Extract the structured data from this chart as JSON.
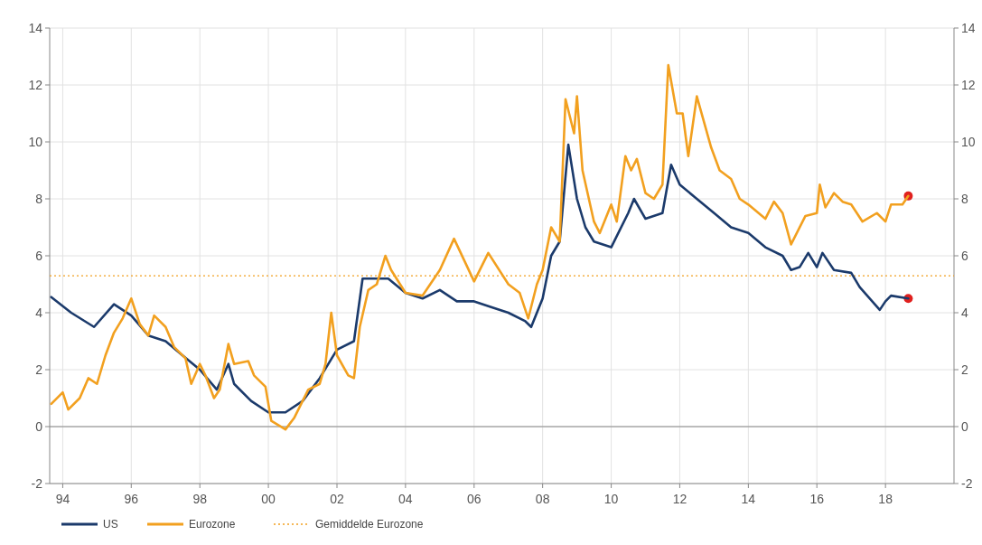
{
  "chart_data": {
    "type": "line",
    "xlim": [
      "1993-08-15",
      "2020-01-01"
    ],
    "ylim": [
      -2,
      14
    ],
    "y2lim": [
      -2,
      14
    ],
    "xticks": [
      {
        "value": "1994-01-01",
        "label": "94"
      },
      {
        "value": "1996-01-01",
        "label": "96"
      },
      {
        "value": "1998-01-01",
        "label": "98"
      },
      {
        "value": "2000-01-01",
        "label": "00"
      },
      {
        "value": "2002-01-01",
        "label": "02"
      },
      {
        "value": "2004-01-01",
        "label": "04"
      },
      {
        "value": "2006-01-01",
        "label": "06"
      },
      {
        "value": "2008-01-01",
        "label": "08"
      },
      {
        "value": "2010-01-01",
        "label": "10"
      },
      {
        "value": "2012-01-01",
        "label": "12"
      },
      {
        "value": "2014-01-01",
        "label": "14"
      },
      {
        "value": "2016-01-01",
        "label": "16"
      },
      {
        "value": "2018-01-01",
        "label": "18"
      }
    ],
    "yticks": [
      -2,
      0,
      2,
      4,
      6,
      8,
      10,
      12,
      14
    ],
    "y2ticks": [
      -2,
      0,
      2,
      4,
      6,
      8,
      10,
      12,
      14
    ],
    "grid": true,
    "legend": "bottom left",
    "line_style": "solid",
    "series": [
      {
        "name": "US",
        "color": "#1b3a6b",
        "x": [
          "1993-09",
          "1994-04",
          "1994-12",
          "1995-07",
          "1996-01",
          "1996-07",
          "1997-01",
          "1997-07",
          "1998-01",
          "1998-07",
          "1998-11",
          "1999-01",
          "1999-07",
          "2000-01",
          "2000-07",
          "2001-01",
          "2001-07",
          "2002-01",
          "2002-07",
          "2002-10",
          "2003-07",
          "2004-01",
          "2004-07",
          "2005-01",
          "2005-07",
          "2006-01",
          "2006-07",
          "2007-01",
          "2007-07",
          "2007-09",
          "2008-01",
          "2008-04",
          "2008-07",
          "2008-10",
          "2009-01",
          "2009-04",
          "2009-07",
          "2010-01",
          "2010-07",
          "2010-09",
          "2011-01",
          "2011-07",
          "2011-10",
          "2012-01",
          "2012-07",
          "2013-01",
          "2013-07",
          "2014-01",
          "2014-07",
          "2015-01",
          "2015-04",
          "2015-07",
          "2015-10",
          "2016-01",
          "2016-03",
          "2016-07",
          "2017-01",
          "2017-04",
          "2017-11",
          "2018-01",
          "2018-03",
          "2018-09"
        ],
        "values": [
          4.55,
          4.0,
          3.5,
          4.3,
          3.9,
          3.2,
          3.0,
          2.5,
          2.0,
          1.3,
          2.2,
          1.5,
          0.9,
          0.5,
          0.5,
          0.9,
          1.7,
          2.7,
          3.0,
          5.2,
          5.2,
          4.7,
          4.5,
          4.8,
          4.4,
          4.4,
          4.2,
          4.0,
          3.7,
          3.5,
          4.5,
          6.0,
          6.5,
          9.9,
          8.0,
          7.0,
          6.5,
          6.3,
          7.5,
          8.0,
          7.3,
          7.5,
          9.2,
          8.5,
          8.0,
          7.5,
          7.0,
          6.8,
          6.3,
          6.0,
          5.5,
          5.6,
          6.1,
          5.6,
          6.1,
          5.5,
          5.4,
          4.9,
          4.1,
          4.4,
          4.6,
          4.5
        ]
      },
      {
        "name": "Eurozone",
        "color": "#f2a01f",
        "x": [
          "1993-09",
          "1994-01",
          "1994-03",
          "1994-07",
          "1994-10",
          "1995-01",
          "1995-04",
          "1995-07",
          "1995-10",
          "1996-01",
          "1996-04",
          "1996-07",
          "1996-09",
          "1997-01",
          "1997-04",
          "1997-08",
          "1997-10",
          "1998-01",
          "1998-03",
          "1998-06",
          "1998-08",
          "1998-11",
          "1999-01",
          "1999-06",
          "1999-08",
          "1999-12",
          "2000-02",
          "2000-07",
          "2000-10",
          "2001-03",
          "2001-07",
          "2001-09",
          "2001-11",
          "2002-01",
          "2002-05",
          "2002-07",
          "2002-09",
          "2002-12",
          "2003-03",
          "2003-06",
          "2003-08",
          "2004-01",
          "2004-07",
          "2005-01",
          "2005-06",
          "2006-01",
          "2006-06",
          "2007-01",
          "2007-05",
          "2007-08",
          "2007-11",
          "2008-01",
          "2008-04",
          "2008-07",
          "2008-09",
          "2008-12",
          "2009-01",
          "2009-03",
          "2009-07",
          "2009-09",
          "2010-01",
          "2010-03",
          "2010-06",
          "2010-08",
          "2010-10",
          "2011-01",
          "2011-04",
          "2011-07",
          "2011-09",
          "2011-12",
          "2012-02",
          "2012-04",
          "2012-07",
          "2012-12",
          "2013-03",
          "2013-07",
          "2013-10",
          "2014-01",
          "2014-07",
          "2014-10",
          "2015-01",
          "2015-04",
          "2015-09",
          "2016-01",
          "2016-02",
          "2016-04",
          "2016-07",
          "2016-10",
          "2017-01",
          "2017-05",
          "2017-10",
          "2018-01",
          "2018-03",
          "2018-07",
          "2018-09"
        ],
        "values": [
          0.8,
          1.2,
          0.6,
          1.0,
          1.7,
          1.5,
          2.5,
          3.3,
          3.8,
          4.5,
          3.6,
          3.2,
          3.9,
          3.5,
          2.8,
          2.4,
          1.5,
          2.2,
          1.8,
          1.0,
          1.3,
          2.9,
          2.2,
          2.3,
          1.8,
          1.4,
          0.2,
          -0.1,
          0.3,
          1.3,
          1.5,
          2.2,
          4.0,
          2.5,
          1.8,
          1.7,
          3.5,
          4.8,
          5.0,
          6.0,
          5.5,
          4.7,
          4.6,
          5.5,
          6.6,
          5.1,
          6.1,
          5.0,
          4.7,
          3.8,
          5.0,
          5.5,
          7.0,
          6.5,
          11.5,
          10.3,
          11.6,
          9.0,
          7.2,
          6.8,
          7.8,
          7.2,
          9.5,
          9.0,
          9.4,
          8.2,
          8.0,
          8.5,
          12.7,
          11.0,
          11.0,
          9.5,
          11.6,
          9.8,
          9.0,
          8.7,
          8.0,
          7.8,
          7.3,
          7.9,
          7.5,
          6.4,
          7.4,
          7.5,
          8.5,
          7.7,
          8.2,
          7.9,
          7.8,
          7.2,
          7.5,
          7.2,
          7.8,
          7.8,
          8.1
        ]
      },
      {
        "type": "scatter",
        "color": "#e0201e",
        "marker": "circle",
        "x": [
          "2018-09",
          "2018-09"
        ],
        "values": [
          8.1,
          4.5
        ]
      }
    ],
    "ref_lines": [
      {
        "axis": "y",
        "value": 5.3,
        "label": "Gemiddelde Eurozone",
        "color": "#f2a01f",
        "line_style": "dotted"
      }
    ]
  }
}
